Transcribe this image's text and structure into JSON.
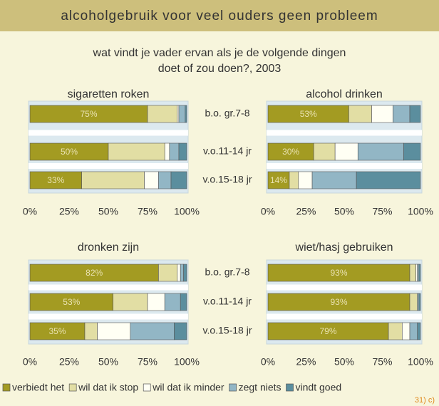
{
  "title": "alcoholgebruik voor veel ouders geen probleem",
  "subtitle": [
    "wat vindt je vader ervan als je de volgende dingen",
    "doet of zou doen?, 2003"
  ],
  "source": "31) c)",
  "legend": [
    {
      "name": "verbiedt het",
      "color": "#a39b22"
    },
    {
      "name": "wil dat ik stop",
      "color": "#e2dea4"
    },
    {
      "name": "wil dat ik minder",
      "color": "#fffff4"
    },
    {
      "name": "zegt niets",
      "color": "#92b6c5"
    },
    {
      "name": "vindt goed",
      "color": "#5b8e9e"
    }
  ],
  "chart_data": [
    {
      "type": "bar",
      "title": "sigaretten roken",
      "categories": [
        "b.o. gr.7-8",
        "v.o.11-14 jr",
        "v.o.15-18 jr"
      ],
      "series": [
        {
          "values": [
            75,
            50,
            33
          ],
          "value_labels": [
            "75%",
            "50%",
            "33%"
          ]
        },
        {
          "values": [
            19,
            36,
            40
          ]
        },
        {
          "values": [
            1,
            3,
            9
          ]
        },
        {
          "values": [
            4,
            6,
            8
          ]
        },
        {
          "values": [
            1,
            5,
            10
          ]
        }
      ],
      "xlim": [
        0,
        100
      ],
      "xticks": [
        {
          "value": 0,
          "label": "0%"
        },
        {
          "value": 25,
          "label": "25%"
        },
        {
          "value": 50,
          "label": "50%"
        },
        {
          "value": 75,
          "label": "75%"
        },
        {
          "value": 100,
          "label": "100%"
        }
      ]
    },
    {
      "type": "bar",
      "title": "alcohol drinken",
      "series": [
        {
          "values": [
            53,
            30,
            14
          ],
          "value_labels": [
            "53%",
            "30%",
            "14%"
          ]
        },
        {
          "values": [
            15,
            14,
            6
          ]
        },
        {
          "values": [
            14,
            15,
            9
          ]
        },
        {
          "values": [
            11,
            30,
            29
          ]
        },
        {
          "values": [
            7,
            11,
            42
          ]
        }
      ],
      "xlim": [
        0,
        100
      ],
      "xticks": [
        {
          "value": 0,
          "label": "0%"
        },
        {
          "value": 25,
          "label": "25%"
        },
        {
          "value": 50,
          "label": "50%"
        },
        {
          "value": 75,
          "label": "75%"
        },
        {
          "value": 100,
          "label": "100%"
        }
      ]
    },
    {
      "type": "bar",
      "title": "dronken zijn",
      "categories": [
        "b.o. gr.7-8",
        "v.o.11-14 jr",
        "v.o.15-18 jr"
      ],
      "series": [
        {
          "values": [
            82,
            53,
            35
          ],
          "value_labels": [
            "82%",
            "53%",
            "35%"
          ]
        },
        {
          "values": [
            12,
            22,
            8
          ]
        },
        {
          "values": [
            2,
            11,
            21
          ]
        },
        {
          "values": [
            2,
            10,
            28
          ]
        },
        {
          "values": [
            2,
            4,
            8
          ]
        }
      ],
      "xlim": [
        0,
        100
      ],
      "xticks": [
        {
          "value": 0,
          "label": "0%"
        },
        {
          "value": 25,
          "label": "25%"
        },
        {
          "value": 50,
          "label": "50%"
        },
        {
          "value": 75,
          "label": "75%"
        },
        {
          "value": 100,
          "label": "100%"
        }
      ]
    },
    {
      "type": "bar",
      "title": "wiet/hasj gebruiken",
      "series": [
        {
          "values": [
            93,
            93,
            79
          ],
          "value_labels": [
            "93%",
            "93%",
            "79%"
          ]
        },
        {
          "values": [
            4,
            5,
            9
          ]
        },
        {
          "values": [
            1,
            0,
            5
          ]
        },
        {
          "values": [
            1,
            1,
            5
          ]
        },
        {
          "values": [
            1,
            1,
            2
          ]
        }
      ],
      "xlim": [
        0,
        100
      ],
      "xticks": [
        {
          "value": 0,
          "label": "0%"
        },
        {
          "value": 25,
          "label": "25%"
        },
        {
          "value": 50,
          "label": "50%"
        },
        {
          "value": 75,
          "label": "75%"
        },
        {
          "value": 100,
          "label": "100%"
        }
      ]
    }
  ]
}
